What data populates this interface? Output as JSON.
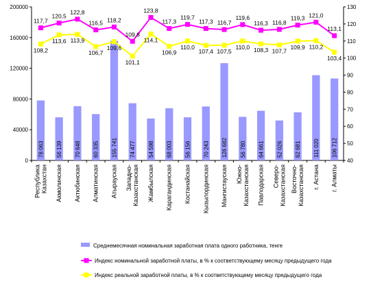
{
  "colors": {
    "bar": "#9999ff",
    "nominal_line": "#ff00ff",
    "real_line": "#ffff00",
    "axis": "#000000"
  },
  "chart_data": {
    "type": "bar",
    "title": "",
    "xlabel": "",
    "ylabel": "",
    "grid": false,
    "legend_position": "bottom",
    "ylim": [
      0,
      200000
    ],
    "y2lim": [
      40,
      130
    ],
    "yticks": [
      "0",
      "40000",
      "80000",
      "120000",
      "160000",
      "200000"
    ],
    "y2ticks": [
      "40",
      "50",
      "60",
      "70",
      "80",
      "90",
      "100",
      "110",
      "120",
      "130"
    ],
    "categories": [
      [
        "Республика",
        "Казахстан"
      ],
      [
        "Акмолинская"
      ],
      [
        "Актюбинская"
      ],
      [
        "Алматинская"
      ],
      [
        "Атырауская"
      ],
      [
        "Западно-",
        "Казахстанская"
      ],
      [
        "Жамбылская"
      ],
      [
        "Карагандинская"
      ],
      [
        "Костанайская"
      ],
      [
        "Кызылординская"
      ],
      [
        "Мангистауская"
      ],
      [
        "Южно-",
        "Казахстанская"
      ],
      [
        "Павлодарская"
      ],
      [
        "Северо-",
        "Казахстанская"
      ],
      [
        "Восточно-",
        "Казахстанская"
      ],
      [
        "г. Астана"
      ],
      [
        "г. Алматы"
      ]
    ],
    "series": [
      {
        "name": "Среднемесячная номинальная заработная плата одного работника, тенге",
        "kind": "bar",
        "axis": "left",
        "values": [
          78063,
          56139,
          70648,
          60335,
          155741,
          74477,
          54598,
          68003,
          56156,
          70243,
          126682,
          56780,
          64661,
          52026,
          62681,
          111020,
          106712
        ],
        "labels": [
          "78 063",
          "56 139",
          "70 648",
          "60 335",
          "155 741",
          "74 477",
          "54 598",
          "68 003",
          "56 156",
          "70 243",
          "126 682",
          "56 780",
          "64 661",
          "52 026",
          "62 681",
          "111 020",
          "106 712"
        ]
      },
      {
        "name": "Индекс номинальной заработной платы, в % к соответствующему месяцу предыдущего года",
        "kind": "line",
        "axis": "right",
        "values": [
          117.7,
          120.5,
          122.8,
          116.5,
          118.2,
          109.8,
          123.8,
          117.3,
          119.7,
          117.3,
          116.7,
          119.6,
          116.3,
          116.8,
          119.3,
          121.0,
          113.1
        ],
        "labels": [
          "117,7",
          "120,5",
          "122,8",
          "116,5",
          "118,2",
          "109,8",
          "123,8",
          "117,3",
          "119,7",
          "117,3",
          "116,7",
          "119,6",
          "116,3",
          "116,8",
          "119,3",
          "121,0",
          "113,1"
        ]
      },
      {
        "name": "Индекс реальной заработной платы, в % к соответствующему месяцу предыдущего года",
        "kind": "line",
        "axis": "right",
        "values": [
          108.2,
          113.6,
          113.9,
          106.7,
          109.6,
          101.1,
          114.1,
          106.9,
          110.0,
          107.4,
          107.5,
          110.0,
          108.3,
          107.7,
          109.9,
          110.2,
          103.4
        ],
        "labels": [
          "108,2",
          "113,6",
          "113,9",
          "106,7",
          "109,6",
          "101,1",
          "114,1",
          "106,9",
          "110,0",
          "107,4",
          "107,5",
          "110,0",
          "108,3",
          "107,7",
          "109,9",
          "110,2",
          "103,4"
        ]
      }
    ]
  }
}
